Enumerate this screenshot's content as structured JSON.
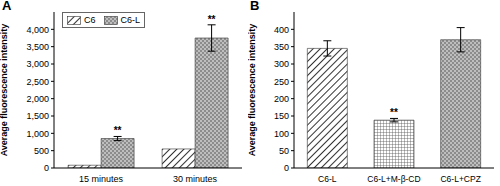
{
  "chart_data": [
    {
      "type": "bar",
      "panel": "A",
      "y_label": "Average fluorescence intensity",
      "categories": [
        "15 minutes",
        "30 minutes"
      ],
      "series": [
        {
          "name": "C6",
          "color": "#333333",
          "values": [
            80,
            550
          ]
        },
        {
          "name": "C6-L",
          "color": "#8c8c8c",
          "values": [
            850,
            3750
          ],
          "errors": [
            60,
            380
          ],
          "significance": [
            "**",
            "**"
          ]
        }
      ],
      "ylim": [
        0,
        4500
      ],
      "yticks": [
        0,
        500,
        {
          "value": 1000,
          "label": "1,000"
        },
        {
          "value": 1500,
          "label": "1,500"
        },
        {
          "value": 2000,
          "label": "2,000"
        },
        {
          "value": 2500,
          "label": "2,500"
        },
        {
          "value": 3000,
          "label": "3,000"
        },
        {
          "value": 3500,
          "label": "3,500"
        },
        {
          "value": 4000,
          "label": "4,000"
        }
      ],
      "legend": "upper left",
      "grid": false
    },
    {
      "type": "bar",
      "panel": "B",
      "y_label": "Average fluorescence intensity",
      "categories": [
        "C6-L",
        "C6-L+M-β-CD",
        "C6-L+CPZ"
      ],
      "values": [
        345,
        138,
        370
      ],
      "errors": [
        22,
        5,
        35
      ],
      "significance": [
        null,
        "**",
        null
      ],
      "colors": [
        "#333333",
        "#555555",
        "#8c8c8c"
      ],
      "ylim": [
        0,
        450
      ],
      "yticks": [
        0,
        50,
        100,
        150,
        200,
        250,
        300,
        350,
        400
      ],
      "grid": false
    }
  ]
}
